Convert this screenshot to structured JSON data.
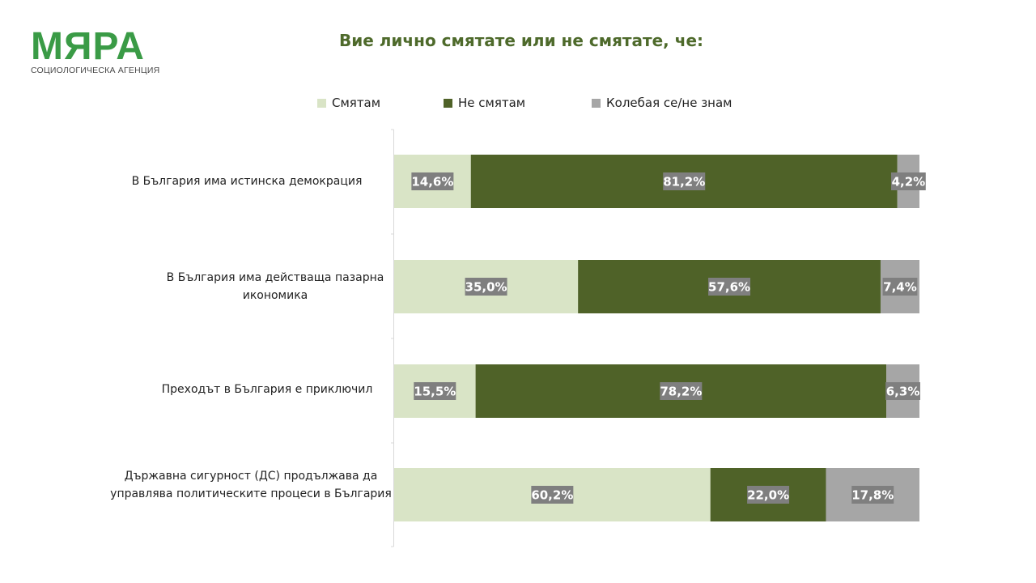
{
  "logo": {
    "main": "МЯРА",
    "sub": "СОЦИОЛОГИЧЕСКА АГЕНЦИЯ"
  },
  "title": "Вие лично смятате или не смятате, че:",
  "colors": {
    "agree": "#d9e4c6",
    "disagree": "#4f6228",
    "unsure": "#a6a6a6",
    "label_bg": "#7f7f7f"
  },
  "legend": [
    {
      "label": "Смятам",
      "color": "#d9e4c6"
    },
    {
      "label": "Не смятам",
      "color": "#4f6228"
    },
    {
      "label": "Колебая се/не знам",
      "color": "#a6a6a6"
    }
  ],
  "chart_data": {
    "type": "bar",
    "orientation": "horizontal",
    "stacked": true,
    "percent": true,
    "categories": [
      "В България има истинска демокрация",
      "В България има действаща пазарна икономика",
      "Преходът в България е приключил",
      "Държавна сигурност (ДС) продължава да управлява политическите процеси в България"
    ],
    "series": [
      {
        "name": "Смятам",
        "values": [
          14.6,
          35.0,
          15.5,
          60.2
        ],
        "labels": [
          "14,6%",
          "35,0%",
          "15,5%",
          "60,2%"
        ]
      },
      {
        "name": "Не смятам",
        "values": [
          81.2,
          57.6,
          78.2,
          22.0
        ],
        "labels": [
          "81,2%",
          "57,6%",
          "78,2%",
          "22,0%"
        ]
      },
      {
        "name": "Колебая се/не знам",
        "values": [
          4.2,
          7.4,
          6.3,
          17.8
        ],
        "labels": [
          "4,2%",
          "7,4%",
          "6,3%",
          "17,8%"
        ]
      }
    ],
    "xlim": [
      0,
      100
    ],
    "legend_position": "top"
  }
}
